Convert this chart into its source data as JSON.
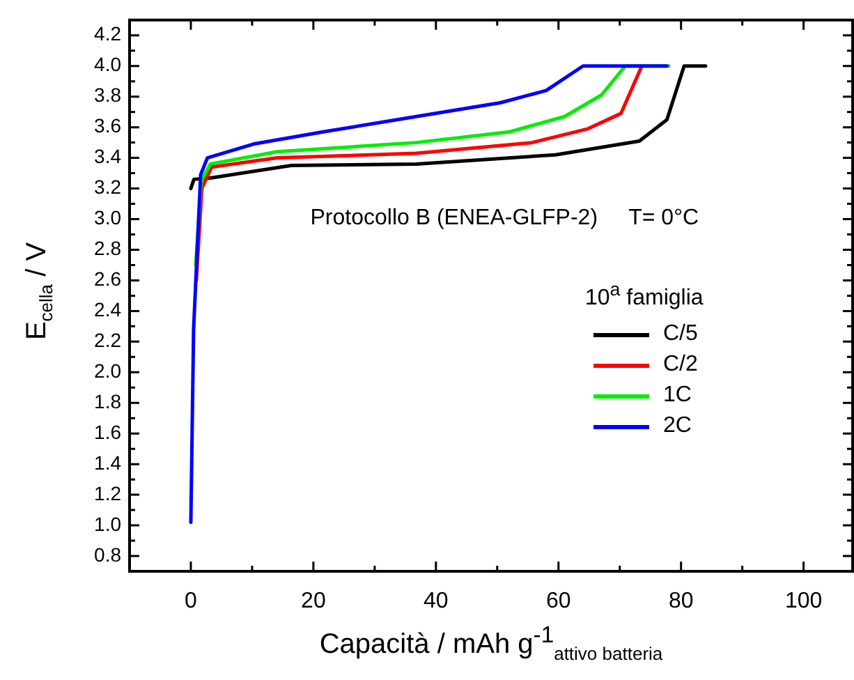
{
  "chart_data": {
    "type": "line",
    "annotations": [
      "Protocollo B (ENEA-GLFP-2)",
      "T= 0°C"
    ],
    "xlabel": "Capacità / mAh g$^{-1}$$_{attivo batteria}$",
    "ylabel": "E$_{cella}$ / V",
    "legend_title": "10$^{a}$ famiglia",
    "legend": "right",
    "xlim": [
      -10,
      108
    ],
    "ylim": [
      0.7,
      4.3
    ],
    "xticks": [
      0,
      {
        "value": 10,
        "label": null
      },
      20,
      {
        "value": 30,
        "label": null
      },
      40,
      {
        "value": 50,
        "label": null
      },
      60,
      {
        "value": 70,
        "label": null
      },
      80,
      {
        "value": 90,
        "label": null
      },
      100
    ],
    "yticks": [
      0.8,
      {
        "value": 0.9,
        "label": null
      },
      {
        "value": 1,
        "label": "1.0"
      },
      {
        "value": 1.1,
        "label": null
      },
      1.2,
      {
        "value": 1.3,
        "label": null
      },
      1.4,
      {
        "value": 1.5,
        "label": null
      },
      1.6,
      {
        "value": 1.7,
        "label": null
      },
      1.8,
      {
        "value": 1.9,
        "label": null
      },
      {
        "value": 2,
        "label": "2.0"
      },
      {
        "value": 2.1,
        "label": null
      },
      2.2,
      {
        "value": 2.3,
        "label": null
      },
      2.4,
      {
        "value": 2.5,
        "label": null
      },
      2.6,
      {
        "value": 2.7,
        "label": null
      },
      2.8,
      {
        "value": 2.9,
        "label": null
      },
      {
        "value": 3,
        "label": "3.0"
      },
      {
        "value": 3.1,
        "label": null
      },
      3.2,
      {
        "value": 3.3,
        "label": null
      },
      3.4,
      {
        "value": 3.5,
        "label": null
      },
      3.6,
      {
        "value": 3.7,
        "label": null
      },
      3.8,
      {
        "value": 3.9,
        "label": null
      },
      {
        "value": 4,
        "label": "4.0"
      },
      {
        "value": 4.1,
        "label": null
      },
      4.2
    ],
    "grid": false,
    "marker": "none",
    "line_style": "solid",
    "series": [
      {
        "name": "C/5",
        "color": "#000000",
        "x": [
          0,
          0.5,
          3.4,
          16.4,
          36.8,
          59.5,
          73.2,
          77.7,
          80.5,
          84
        ],
        "values": [
          3.2,
          3.26,
          3.27,
          3.35,
          3.36,
          3.42,
          3.51,
          3.65,
          4.0,
          4.0
        ]
      },
      {
        "name": "C/2",
        "color": "#ff0000",
        "x": [
          0.9,
          1.8,
          3.4,
          14.1,
          36.8,
          55.7,
          64.8,
          70.2,
          73.6
        ],
        "values": [
          2.6,
          3.2,
          3.34,
          3.4,
          3.43,
          3.5,
          3.59,
          3.69,
          4.0
        ]
      },
      {
        "name": "1C",
        "color": "#00ee00",
        "x": [
          0.8,
          1.7,
          3.2,
          14.1,
          36.8,
          52,
          61,
          67,
          70.9,
          78
        ],
        "values": [
          2.7,
          3.25,
          3.36,
          3.44,
          3.5,
          3.57,
          3.67,
          3.81,
          4.0,
          4.0
        ]
      },
      {
        "name": "2C",
        "color": "#0000ff",
        "x": [
          0,
          0.45,
          1.6,
          2.7,
          10.2,
          21.6,
          36.8,
          50.5,
          58,
          64,
          77.7
        ],
        "values": [
          1.02,
          2.28,
          3.29,
          3.4,
          3.49,
          3.57,
          3.67,
          3.76,
          3.84,
          4.0,
          4.0
        ]
      }
    ]
  }
}
